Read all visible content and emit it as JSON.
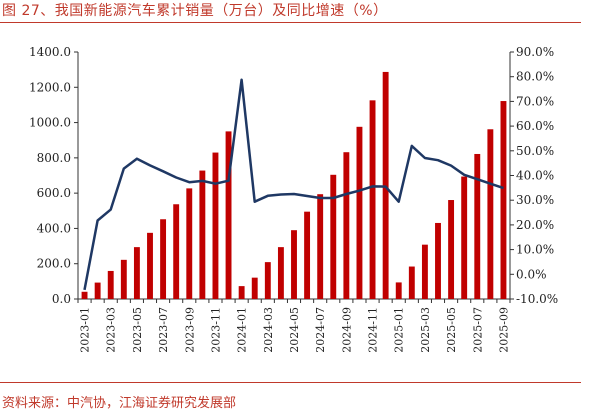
{
  "header": {
    "title": "图 27、我国新能源汽车累计销量（万台）及同比增速（%）",
    "source": "资料来源：中汽协，江海证券研究发展部"
  },
  "colors": {
    "bar": "#c00000",
    "line": "#1f3864",
    "accent": "#c0392b",
    "axis": "#333333"
  },
  "chart_data": {
    "type": "bar",
    "title": "我国新能源汽车累计销量（万台）及同比增速（%）",
    "x": [
      "2023-01",
      "2023-02",
      "2023-03",
      "2023-04",
      "2023-05",
      "2023-06",
      "2023-07",
      "2023-08",
      "2023-09",
      "2023-10",
      "2023-11",
      "2023-12",
      "2024-01",
      "2024-02",
      "2024-03",
      "2024-04",
      "2024-05",
      "2024-06",
      "2024-07",
      "2024-08",
      "2024-09",
      "2024-10",
      "2024-11",
      "2024-12",
      "2025-01",
      "2025-02",
      "2025-03",
      "2025-04",
      "2025-05",
      "2025-06",
      "2025-07",
      "2025-08",
      "2025-09"
    ],
    "x_tick_labels": [
      "2023-01",
      "2023-03",
      "2023-05",
      "2023-07",
      "2023-09",
      "2023-11",
      "2024-01",
      "2024-03",
      "2024-05",
      "2024-07",
      "2024-09",
      "2024-11",
      "2025-01",
      "2025-03",
      "2025-05",
      "2025-07",
      "2025-09"
    ],
    "series": [
      {
        "type": "bar",
        "axis": "left",
        "values": [
          41,
          93,
          159,
          222,
          294,
          375,
          452,
          537,
          627,
          728,
          830,
          950,
          73,
          121,
          209,
          294,
          390,
          495,
          594,
          704,
          832,
          976,
          1126,
          1287,
          94,
          184,
          308,
          431,
          561,
          694,
          822,
          962,
          1122
        ]
      },
      {
        "type": "line",
        "axis": "right",
        "values": [
          -6.3,
          21.8,
          26.2,
          42.8,
          46.8,
          44.1,
          41.7,
          39.2,
          37.3,
          37.8,
          36.7,
          37.9,
          78.8,
          29.4,
          31.8,
          32.3,
          32.5,
          31.7,
          30.9,
          30.9,
          32.5,
          33.9,
          35.6,
          35.5,
          29.4,
          52.0,
          47.1,
          46.2,
          44.0,
          40.3,
          38.5,
          36.7,
          34.9
        ]
      }
    ],
    "y_left": {
      "min": 0,
      "max": 1400,
      "step": 200,
      "tick_labels": [
        "0.0",
        "200.0",
        "400.0",
        "600.0",
        "800.0",
        "1000.0",
        "1200.0",
        "1400.0"
      ]
    },
    "y_right": {
      "min": -10,
      "max": 90,
      "step": 10,
      "tick_labels": [
        "-10.0%",
        "0.0%",
        "10.0%",
        "20.0%",
        "30.0%",
        "40.0%",
        "50.0%",
        "60.0%",
        "70.0%",
        "80.0%",
        "90.0%"
      ]
    },
    "grid": false,
    "legend": "none"
  }
}
